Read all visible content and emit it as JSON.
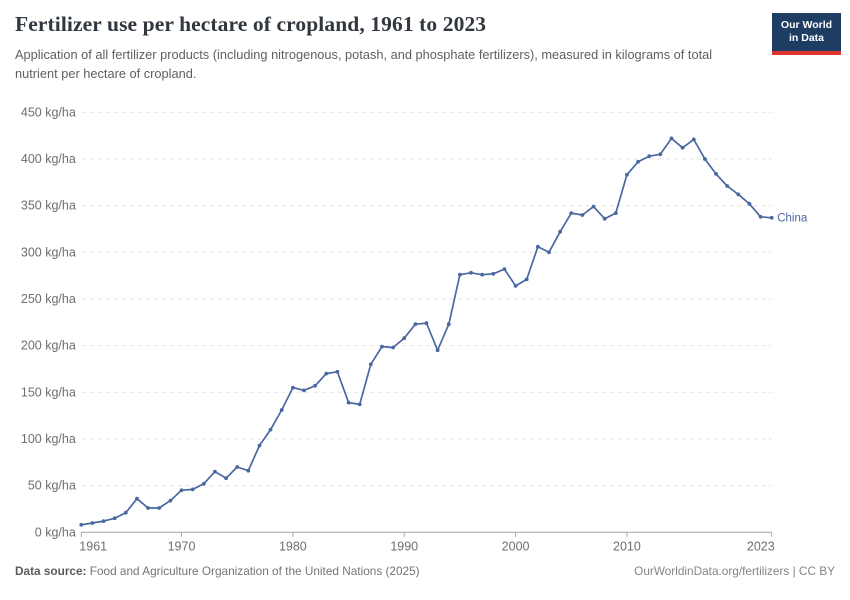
{
  "header": {
    "title": "Fertilizer use per hectare of cropland, 1961 to 2023",
    "subtitle": "Application of all fertilizer products (including nitrogenous, potash, and phosphate fertilizers), measured in kilograms of total nutrient per hectare of cropland."
  },
  "logo": {
    "line1": "Our World",
    "line2": "in Data"
  },
  "chart_data": {
    "type": "line",
    "title": "Fertilizer use per hectare of cropland, 1961 to 2023",
    "xlabel": "",
    "ylabel": "kg/ha",
    "xlim": [
      1961,
      2023
    ],
    "ylim": [
      0,
      450
    ],
    "x_ticks": [
      1961,
      1970,
      1980,
      1990,
      2000,
      2010,
      2023
    ],
    "y_ticks": [
      0,
      50,
      100,
      150,
      200,
      250,
      300,
      350,
      400,
      450
    ],
    "y_tick_suffix": " kg/ha",
    "grid": "horizontal-dashed",
    "legend_position": "end-of-line-label",
    "x": [
      1961,
      1962,
      1963,
      1964,
      1965,
      1966,
      1967,
      1968,
      1969,
      1970,
      1971,
      1972,
      1973,
      1974,
      1975,
      1976,
      1977,
      1978,
      1979,
      1980,
      1981,
      1982,
      1983,
      1984,
      1985,
      1986,
      1987,
      1988,
      1989,
      1990,
      1991,
      1992,
      1993,
      1994,
      1995,
      1996,
      1997,
      1998,
      1999,
      2000,
      2001,
      2002,
      2003,
      2004,
      2005,
      2006,
      2007,
      2008,
      2009,
      2010,
      2011,
      2012,
      2013,
      2014,
      2015,
      2016,
      2017,
      2018,
      2019,
      2020,
      2021,
      2022,
      2023
    ],
    "series": [
      {
        "name": "China",
        "values": [
          8,
          10,
          12,
          15,
          21,
          36,
          26,
          26,
          34,
          45,
          46,
          52,
          65,
          58,
          70,
          66,
          93,
          110,
          131,
          155,
          152,
          157,
          170,
          172,
          139,
          137,
          180,
          199,
          198,
          208,
          223,
          224,
          195,
          223,
          276,
          278,
          276,
          277,
          282,
          264,
          271,
          306,
          300,
          322,
          342,
          340,
          349,
          336,
          342,
          383,
          397,
          403,
          405,
          422,
          412,
          421,
          400,
          384,
          371,
          362,
          352,
          338,
          337
        ]
      }
    ]
  },
  "footer": {
    "source_label": "Data source:",
    "source_value": " Food and Agriculture Organization of the United Nations (2025)",
    "credit": "OurWorldinData.org/fertilizers | CC BY"
  },
  "colors": {
    "line": "#4a68a0",
    "grid": "#e2e2e2",
    "axis": "#a5a5a5",
    "tick_text": "#6e6e6e",
    "logo_bg": "#1d3d63",
    "logo_red": "#dc352d"
  }
}
